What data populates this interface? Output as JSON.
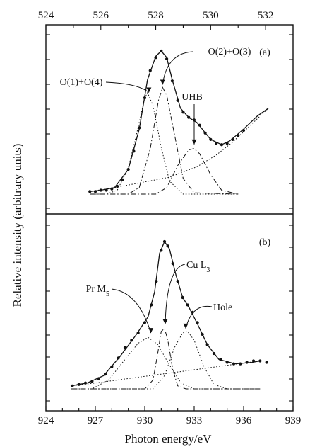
{
  "chart_data": [
    {
      "type": "line",
      "panel_label": "(a)",
      "top_axis": {
        "ticks": [
          524,
          526,
          528,
          530,
          532
        ],
        "tick_labels": [
          "524",
          "526",
          "528",
          "530",
          "532"
        ],
        "range": [
          524,
          533
        ]
      },
      "ylabel": "Relative intensity (arbitrary units)",
      "series": [
        {
          "name": "O(1)+O(4)",
          "style": "dotted",
          "values": [
            [
              525.6,
              0.0
            ],
            [
              526.2,
              0.0
            ],
            [
              526.6,
              0.03
            ],
            [
              527.0,
              0.2
            ],
            [
              527.3,
              0.46
            ],
            [
              527.6,
              0.74
            ],
            [
              527.7,
              0.78
            ],
            [
              527.9,
              0.68
            ],
            [
              528.2,
              0.36
            ],
            [
              528.5,
              0.1
            ],
            [
              529.0,
              0.0
            ],
            [
              531.0,
              0.0
            ]
          ]
        },
        {
          "name": "O(2)+O(3)",
          "style": "dash-dot",
          "values": [
            [
              525.6,
              0.0
            ],
            [
              527.0,
              0.0
            ],
            [
              527.4,
              0.05
            ],
            [
              527.8,
              0.35
            ],
            [
              528.1,
              0.72
            ],
            [
              528.25,
              0.82
            ],
            [
              528.4,
              0.76
            ],
            [
              528.7,
              0.44
            ],
            [
              529.0,
              0.12
            ],
            [
              529.4,
              0.01
            ],
            [
              531.0,
              0.0
            ]
          ]
        },
        {
          "name": "UHB",
          "style": "dash-dot",
          "values": [
            [
              525.6,
              0.0
            ],
            [
              528.0,
              0.0
            ],
            [
              528.4,
              0.05
            ],
            [
              528.8,
              0.22
            ],
            [
              529.2,
              0.34
            ],
            [
              529.4,
              0.35
            ],
            [
              529.6,
              0.31
            ],
            [
              530.0,
              0.15
            ],
            [
              530.4,
              0.03
            ],
            [
              531.0,
              0.0
            ]
          ]
        },
        {
          "name": "background",
          "style": "dotted",
          "values": [
            [
              525.6,
              0.02
            ],
            [
              526.5,
              0.05
            ],
            [
              527.5,
              0.09
            ],
            [
              528.5,
              0.13
            ],
            [
              529.5,
              0.21
            ],
            [
              530.2,
              0.3
            ],
            [
              530.8,
              0.4
            ],
            [
              531.5,
              0.54
            ],
            [
              532.1,
              0.66
            ]
          ]
        },
        {
          "name": "fit",
          "style": "solid",
          "values": [
            [
              525.6,
              0.02
            ],
            [
              526.0,
              0.03
            ],
            [
              526.5,
              0.05
            ],
            [
              527.0,
              0.19
            ],
            [
              527.4,
              0.5
            ],
            [
              527.7,
              0.88
            ],
            [
              528.0,
              1.06
            ],
            [
              528.2,
              1.1
            ],
            [
              528.4,
              1.05
            ],
            [
              528.6,
              0.88
            ],
            [
              528.9,
              0.66
            ],
            [
              529.2,
              0.59
            ],
            [
              529.5,
              0.55
            ],
            [
              530.0,
              0.42
            ],
            [
              530.4,
              0.38
            ],
            [
              530.7,
              0.41
            ],
            [
              531.2,
              0.5
            ],
            [
              531.7,
              0.6
            ],
            [
              532.1,
              0.66
            ]
          ]
        },
        {
          "name": "data",
          "style": "points",
          "values": [
            [
              525.6,
              0.02
            ],
            [
              525.8,
              0.02
            ],
            [
              526.0,
              0.03
            ],
            [
              526.2,
              0.03
            ],
            [
              526.4,
              0.04
            ],
            [
              526.6,
              0.06
            ],
            [
              526.8,
              0.11
            ],
            [
              527.0,
              0.19
            ],
            [
              527.2,
              0.33
            ],
            [
              527.4,
              0.51
            ],
            [
              527.6,
              0.74
            ],
            [
              527.8,
              0.95
            ],
            [
              528.0,
              1.05
            ],
            [
              528.2,
              1.1
            ],
            [
              528.4,
              1.04
            ],
            [
              528.6,
              0.87
            ],
            [
              528.8,
              0.72
            ],
            [
              529.0,
              0.63
            ],
            [
              529.2,
              0.59
            ],
            [
              529.4,
              0.57
            ],
            [
              529.6,
              0.53
            ],
            [
              529.8,
              0.47
            ],
            [
              530.0,
              0.42
            ],
            [
              530.2,
              0.39
            ],
            [
              530.4,
              0.38
            ],
            [
              530.6,
              0.39
            ],
            [
              530.8,
              0.42
            ],
            [
              531.0,
              0.45
            ],
            [
              531.2,
              0.49
            ]
          ]
        }
      ],
      "annotations": [
        {
          "text": "O(1)+O(4)",
          "x": 527.7,
          "y": 0.76
        },
        {
          "text": "O(2)+O(3)",
          "x": 528.25,
          "y": 0.82
        },
        {
          "text": "UHB",
          "x": 529.4,
          "y": 0.36
        }
      ],
      "ylim": [
        0,
        1.22
      ]
    },
    {
      "type": "line",
      "panel_label": "(b)",
      "bottom_axis": {
        "ticks": [
          924,
          927,
          930,
          933,
          936,
          939
        ],
        "tick_labels": [
          "924",
          "927",
          "930",
          "933",
          "936",
          "939"
        ],
        "range": [
          924,
          939
        ],
        "label": "Photon energy/eV"
      },
      "series": [
        {
          "name": "Pr M5",
          "style": "dotted",
          "values": [
            [
              925.5,
              0.0
            ],
            [
              926.8,
              0.0
            ],
            [
              927.8,
              0.06
            ],
            [
              928.8,
              0.2
            ],
            [
              929.6,
              0.31
            ],
            [
              930.2,
              0.35
            ],
            [
              930.8,
              0.3
            ],
            [
              931.4,
              0.18
            ],
            [
              932.2,
              0.04
            ],
            [
              933.0,
              0.0
            ],
            [
              937.0,
              0.0
            ]
          ]
        },
        {
          "name": "Cu L3",
          "style": "dash-dot",
          "values": [
            [
              925.5,
              0.0
            ],
            [
              930.0,
              0.0
            ],
            [
              930.5,
              0.06
            ],
            [
              930.8,
              0.25
            ],
            [
              931.0,
              0.39
            ],
            [
              931.2,
              0.41
            ],
            [
              931.4,
              0.33
            ],
            [
              931.7,
              0.13
            ],
            [
              932.0,
              0.02
            ],
            [
              932.5,
              0.0
            ],
            [
              937.0,
              0.0
            ]
          ]
        },
        {
          "name": "Hole",
          "style": "dotted",
          "values": [
            [
              925.5,
              0.0
            ],
            [
              930.5,
              0.0
            ],
            [
              931.2,
              0.09
            ],
            [
              931.8,
              0.28
            ],
            [
              932.3,
              0.38
            ],
            [
              932.6,
              0.39
            ],
            [
              933.0,
              0.33
            ],
            [
              933.6,
              0.15
            ],
            [
              934.2,
              0.03
            ],
            [
              935.0,
              0.0
            ],
            [
              937.0,
              0.0
            ]
          ]
        },
        {
          "name": "background",
          "style": "dotted",
          "values": [
            [
              925.5,
              0.02
            ],
            [
              927.0,
              0.04
            ],
            [
              929.0,
              0.07
            ],
            [
              931.0,
              0.1
            ],
            [
              933.0,
              0.13
            ],
            [
              935.0,
              0.16
            ],
            [
              937.0,
              0.19
            ]
          ]
        },
        {
          "name": "fit",
          "style": "solid",
          "values": [
            [
              925.5,
              0.02
            ],
            [
              926.5,
              0.04
            ],
            [
              927.5,
              0.09
            ],
            [
              928.5,
              0.22
            ],
            [
              929.5,
              0.37
            ],
            [
              930.2,
              0.49
            ],
            [
              930.6,
              0.66
            ],
            [
              930.9,
              0.92
            ],
            [
              931.2,
              1.0
            ],
            [
              931.5,
              0.95
            ],
            [
              931.9,
              0.77
            ],
            [
              932.3,
              0.62
            ],
            [
              932.7,
              0.55
            ],
            [
              933.2,
              0.44
            ],
            [
              933.8,
              0.3
            ],
            [
              934.5,
              0.2
            ],
            [
              935.5,
              0.17
            ],
            [
              936.5,
              0.18
            ],
            [
              937.0,
              0.19
            ]
          ]
        },
        {
          "name": "data",
          "style": "points",
          "values": [
            [
              925.6,
              0.02
            ],
            [
              926.0,
              0.03
            ],
            [
              926.4,
              0.04
            ],
            [
              926.8,
              0.05
            ],
            [
              927.2,
              0.07
            ],
            [
              927.6,
              0.1
            ],
            [
              928.0,
              0.15
            ],
            [
              928.4,
              0.21
            ],
            [
              928.8,
              0.28
            ],
            [
              929.2,
              0.33
            ],
            [
              929.6,
              0.38
            ],
            [
              930.0,
              0.45
            ],
            [
              930.4,
              0.57
            ],
            [
              930.7,
              0.73
            ],
            [
              931.0,
              0.94
            ],
            [
              931.2,
              1.0
            ],
            [
              931.4,
              0.97
            ],
            [
              931.7,
              0.85
            ],
            [
              932.0,
              0.73
            ],
            [
              932.3,
              0.62
            ],
            [
              932.6,
              0.57
            ],
            [
              932.9,
              0.52
            ],
            [
              933.2,
              0.45
            ],
            [
              933.5,
              0.37
            ],
            [
              933.8,
              0.3
            ],
            [
              934.2,
              0.24
            ],
            [
              934.6,
              0.2
            ],
            [
              935.0,
              0.18
            ],
            [
              935.4,
              0.17
            ],
            [
              935.8,
              0.17
            ],
            [
              936.2,
              0.18
            ],
            [
              936.6,
              0.19
            ],
            [
              937.0,
              0.19
            ],
            [
              937.4,
              0.18
            ]
          ]
        }
      ],
      "annotations": [
        {
          "text": "Pr M",
          "sub": "5",
          "x": 930.2,
          "y": 0.36
        },
        {
          "text": "Cu L",
          "sub": "3",
          "x": 931.2,
          "y": 0.42
        },
        {
          "text": "Hole",
          "x": 932.4,
          "y": 0.39
        }
      ],
      "ylim": [
        0,
        1.12
      ]
    }
  ]
}
